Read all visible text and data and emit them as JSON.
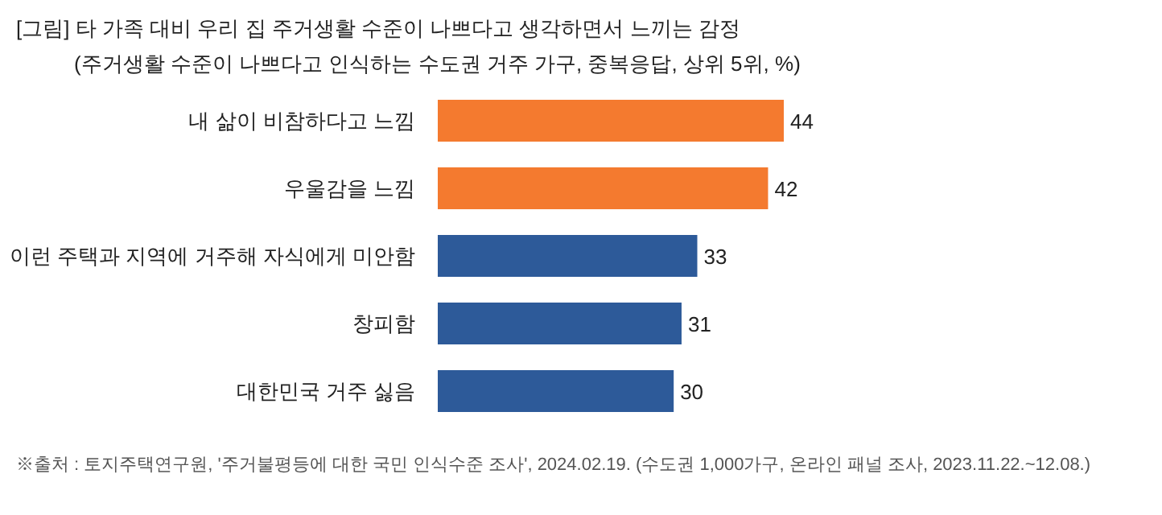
{
  "chart_data": {
    "type": "bar",
    "orientation": "horizontal",
    "title": "[그림] 타 가족 대비 우리 집 주거생활 수준이 나쁘다고 생각하면서 느끼는 감정",
    "subtitle": "(주거생활 수준이 나쁘다고 인식하는 수도권 거주 가구, 중복응답, 상위 5위, %)",
    "categories": [
      "내 삶이 비참하다고 느낌",
      "우울감을 느낌",
      "이런 주택과 지역에 거주해 자식에게 미안함",
      "창피함",
      "대한민국 거주 싫음"
    ],
    "values": [
      44,
      42,
      33,
      31,
      30
    ],
    "colors": [
      "#f47a2f",
      "#f47a2f",
      "#2d5a99",
      "#2d5a99",
      "#2d5a99"
    ],
    "data_labels": true,
    "annotations": [
      "※출처 : 토지주택연구원, '주거불평등에 대한 국민 인식수준 조사', 2024.02.19. (수도권 1,000가구, 온라인 패널 조사, 2023.11.22.~12.08.)"
    ]
  }
}
